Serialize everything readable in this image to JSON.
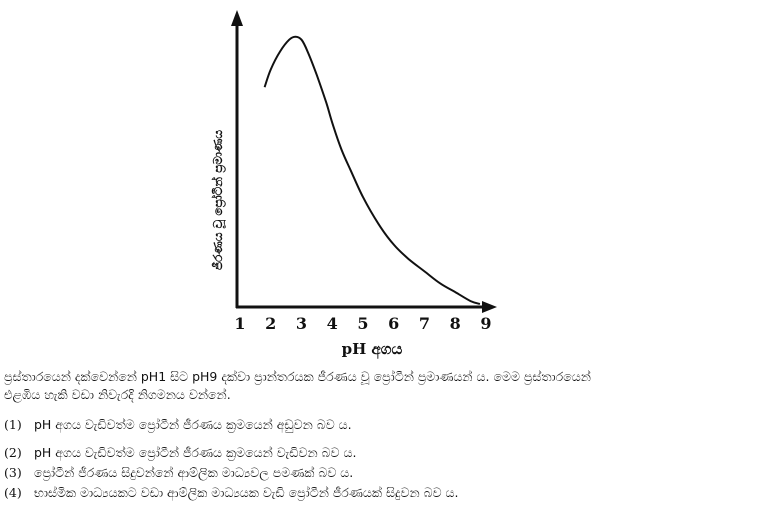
{
  "chart_data": {
    "type": "line",
    "ylabel": "ජීරණය වූ ප්‍රෝටීන් ප්‍රමාණය",
    "xlabel": "pH අගය",
    "x_ticks": [
      1,
      2,
      3,
      4,
      5,
      6,
      7,
      8,
      9
    ],
    "xlim": [
      1,
      9
    ],
    "ylim": [
      0,
      100
    ],
    "y_ticks_shown": false,
    "grid": false,
    "series": [
      {
        "x": [
          1.8,
          2.0,
          2.3,
          2.6,
          2.8,
          3.0,
          3.2,
          3.5,
          3.8,
          4.0,
          4.3,
          4.6,
          5.0,
          5.5,
          6.0,
          6.5,
          7.0,
          7.5,
          8.0,
          8.5,
          8.8
        ],
        "y": [
          74,
          80,
          86,
          90,
          91,
          90,
          86,
          78,
          69,
          62,
          53,
          46,
          37,
          28,
          21,
          16,
          12,
          8,
          5,
          2,
          1
        ]
      }
    ]
  },
  "question": {
    "stem_line1": "ප්‍රස්තාරයෙන් දක්වෙන්නේ pH1 සිට pH9 දක්වා ප්‍රාන්තරයක ජීරණය වූ ප්‍රෝටීන් ප්‍රමාණයන් ය.  මෙම ප්‍රස්තාරයෙන්",
    "stem_line2": "එළඹිය හැකි වඩා නිවැරදි නිගමනය වන්නේ.",
    "options": [
      {
        "num": "(1)",
        "text": "pH අගය වැඩිවත්ම ප්‍රෝටීන් ජීරණය ක්‍රමයෙන් අඩුවන බව ය."
      },
      {
        "num": "(2)",
        "text": "pH අගය වැඩිවත්ම ප්‍රෝටීන් ජීරණය ක්‍රමයෙන් වැඩිවන බව ය."
      },
      {
        "num": "(3)",
        "text": "ප්‍රෝටීන් ජීරණය සිදුවන්නේ ආම්ලික මාධ්‍යවල පමණක් බව ය."
      },
      {
        "num": "(4)",
        "text": "භාස්මික මාධ්‍යයකට වඩා ආම්ලික මාධ්‍යයක වැඩි ප්‍රෝටීන් ජීරණයක් සිදුවන බව ය."
      }
    ]
  }
}
